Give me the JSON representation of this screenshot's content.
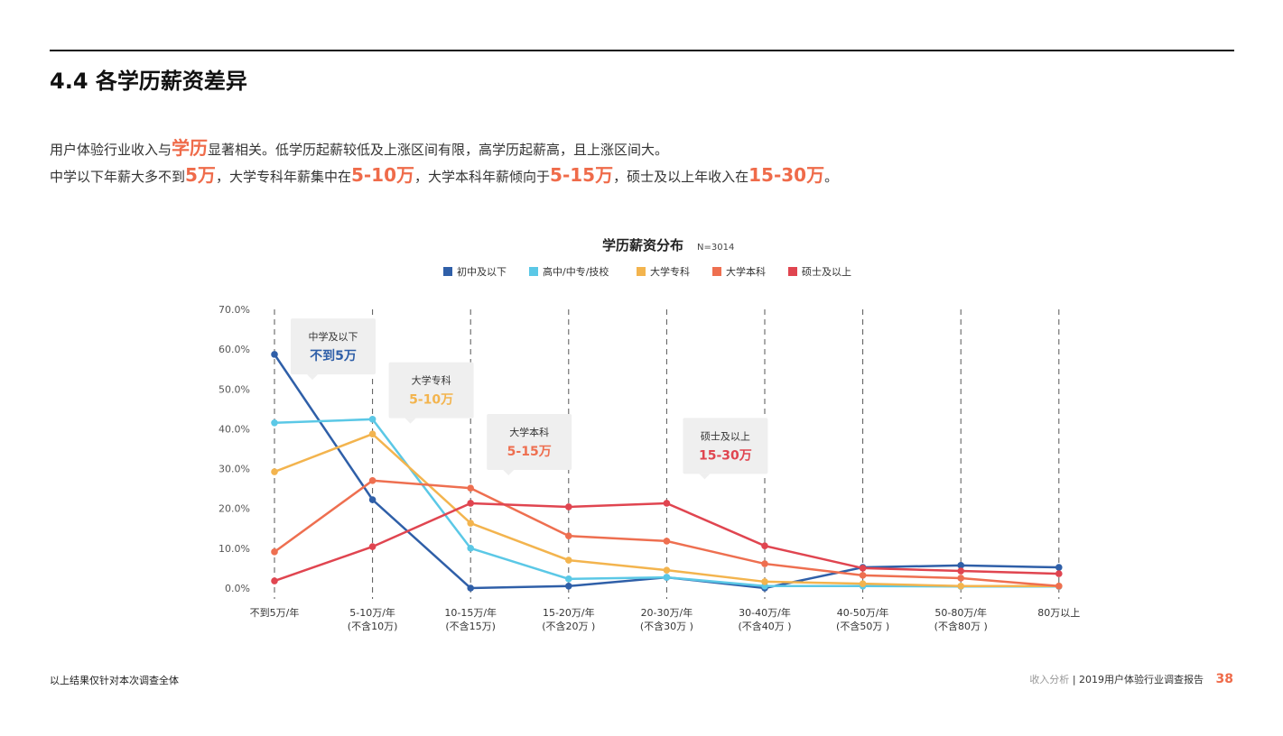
{
  "header": {
    "title": "4.4 各学历薪资差异"
  },
  "description": {
    "line1": [
      {
        "t": "用户体验行业收入与"
      },
      {
        "t": "学历",
        "hl": true
      },
      {
        "t": "显著相关。低学历起薪较低及上涨区间有限，高学历起薪高，且上涨区间大。"
      }
    ],
    "line2": [
      {
        "t": "中学以下年薪大多不到"
      },
      {
        "t": "5万",
        "hl": true
      },
      {
        "t": "，大学专科年薪集中在"
      },
      {
        "t": "5-10万",
        "hl": true
      },
      {
        "t": "，大学本科年薪倾向于"
      },
      {
        "t": "5-15万",
        "hl": true
      },
      {
        "t": "，硕士及以上年收入在"
      },
      {
        "t": "15-30万",
        "hl": true
      },
      {
        "t": "。"
      }
    ]
  },
  "chart_data": {
    "type": "line",
    "title": "学历薪资分布",
    "subtitle": "N=3014",
    "categories": [
      [
        "不到5万/年"
      ],
      [
        "5-10万/年",
        "(不含10万)"
      ],
      [
        "10-15万/年",
        "(不含15万)"
      ],
      [
        "15-20万/年",
        "(不含20万 )"
      ],
      [
        "20-30万/年",
        "(不含30万 )"
      ],
      [
        "30-40万/年",
        "(不含40万 )"
      ],
      [
        "40-50万/年",
        "(不含50万 )"
      ],
      [
        "50-80万/年",
        "(不含80万 )"
      ],
      [
        "80万以上"
      ]
    ],
    "ylim": [
      0,
      70
    ],
    "yticks": [
      "0.0%",
      "10.0%",
      "20.0%",
      "30.0%",
      "40.0%",
      "50.0%",
      "60.0%",
      "70.0%"
    ],
    "legend": "top",
    "series": [
      {
        "name": "初中及以下",
        "color": "#2f5fa8",
        "values": [
          58.7,
          22.2,
          0,
          0.5,
          2.7,
          0,
          5.2,
          5.7,
          5.2
        ]
      },
      {
        "name": "高中/中专/技校",
        "color": "#5bc8e6",
        "values": [
          41.5,
          42.4,
          10.0,
          2.3,
          2.7,
          0.5,
          0.5,
          0.4,
          0.4
        ]
      },
      {
        "name": "大学专科",
        "color": "#f3b44e",
        "values": [
          29.2,
          38.7,
          16.3,
          7.0,
          4.5,
          1.6,
          1.1,
          0.5,
          0.5
        ]
      },
      {
        "name": "大学本科",
        "color": "#ee6f50",
        "values": [
          9.1,
          27.0,
          25.1,
          13.1,
          11.8,
          6.1,
          3.2,
          2.5,
          0.5
        ]
      },
      {
        "name": "硕士及以上",
        "color": "#e04550",
        "values": [
          1.8,
          10.4,
          21.3,
          20.4,
          21.3,
          10.6,
          5.0,
          4.3,
          3.6
        ]
      }
    ],
    "annotations": [
      {
        "label": "中学及以下",
        "value": "不到5万",
        "color": "#2f5fa8",
        "cat": 0,
        "y": 65
      },
      {
        "label": "大学专科",
        "value": "5-10万",
        "color": "#f3b44e",
        "cat": 1,
        "y": 54
      },
      {
        "label": "大学本科",
        "value": "5-15万",
        "color": "#ee6f50",
        "cat": 2,
        "y": 41
      },
      {
        "label": "硕士及以上",
        "value": "15-30万",
        "color": "#e04550",
        "cat": 4,
        "y": 40
      }
    ]
  },
  "footer": {
    "note": "以上结果仅针对本次调查全体",
    "section": "收入分析",
    "report": "2019用户体验行业调查报告",
    "page": "38"
  }
}
